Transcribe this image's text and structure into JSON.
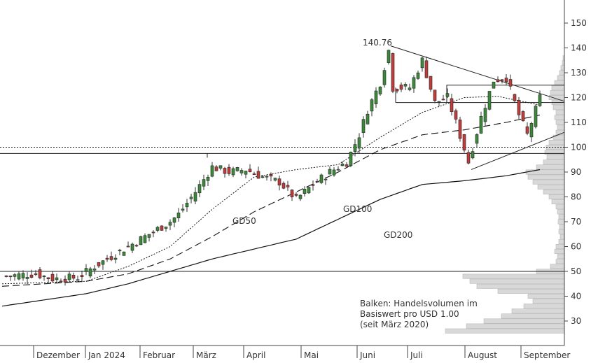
{
  "chart_data": {
    "type": "candlestick",
    "y_axis": {
      "position": "right",
      "range": [
        22,
        162
      ],
      "ticks": [
        30,
        40,
        50,
        60,
        70,
        80,
        90,
        100,
        110,
        120,
        130,
        140,
        150
      ],
      "tick_labels": [
        "30",
        "40",
        "50",
        "60",
        "70",
        "80",
        "90",
        "100",
        "110",
        "120",
        "130",
        "140",
        "150"
      ]
    },
    "x_axis": {
      "labels": [
        "Dezember",
        "Jan 2024",
        "Februar",
        "März",
        "April",
        "Mai",
        "Juni",
        "Juli",
        "August",
        "September"
      ]
    },
    "peak_label": "140.76",
    "peak_value": 140.76,
    "moving_average_labels": [
      "GD50",
      "GD100",
      "GD200"
    ],
    "reference_lines": {
      "horizontal_solid": 50,
      "horizontal_dotted": 100,
      "support_box_top": 97.5,
      "range_box": [
        118,
        125
      ]
    },
    "price_path": [
      [
        0,
        48
      ],
      [
        8,
        49
      ],
      [
        12,
        47
      ],
      [
        18,
        47.5
      ],
      [
        22,
        52
      ],
      [
        28,
        58
      ],
      [
        36,
        66
      ],
      [
        40,
        70
      ],
      [
        42,
        73
      ],
      [
        46,
        82
      ],
      [
        50,
        92
      ],
      [
        54,
        90
      ],
      [
        58,
        91
      ],
      [
        62,
        88
      ],
      [
        66,
        86
      ],
      [
        70,
        79
      ],
      [
        74,
        85
      ],
      [
        78,
        90
      ],
      [
        82,
        94
      ],
      [
        85,
        105
      ],
      [
        87,
        115
      ],
      [
        90,
        126
      ],
      [
        92,
        139
      ],
      [
        93,
        124
      ],
      [
        97,
        124
      ],
      [
        100,
        135
      ],
      [
        103,
        118
      ],
      [
        106,
        120
      ],
      [
        108,
        110
      ],
      [
        111,
        94
      ],
      [
        114,
        112
      ],
      [
        117,
        127
      ],
      [
        120,
        128
      ],
      [
        123,
        113
      ],
      [
        125,
        105
      ],
      [
        128,
        120
      ]
    ],
    "gd50": [
      [
        0,
        45
      ],
      [
        20,
        46
      ],
      [
        30,
        52
      ],
      [
        40,
        60
      ],
      [
        50,
        75
      ],
      [
        60,
        88
      ],
      [
        70,
        91
      ],
      [
        80,
        93
      ],
      [
        90,
        104
      ],
      [
        100,
        114
      ],
      [
        110,
        120
      ],
      [
        118,
        120.5
      ],
      [
        128,
        117
      ]
    ],
    "gd100": [
      [
        0,
        44
      ],
      [
        20,
        46
      ],
      [
        30,
        49
      ],
      [
        40,
        55
      ],
      [
        50,
        64
      ],
      [
        60,
        74
      ],
      [
        70,
        82
      ],
      [
        80,
        90
      ],
      [
        90,
        99
      ],
      [
        100,
        105
      ],
      [
        110,
        107
      ],
      [
        120,
        110
      ],
      [
        128,
        113
      ]
    ],
    "gd200": [
      [
        0,
        36
      ],
      [
        20,
        41
      ],
      [
        30,
        45
      ],
      [
        40,
        50
      ],
      [
        50,
        55
      ],
      [
        60,
        59
      ],
      [
        70,
        63
      ],
      [
        80,
        71
      ],
      [
        90,
        79
      ],
      [
        100,
        85
      ],
      [
        110,
        86.5
      ],
      [
        120,
        88.5
      ],
      [
        128,
        91
      ]
    ],
    "volume_profile_note": [
      "Balken: Handelsvolumen im",
      "Basiswert pro USD 1.00",
      "(seit März 2020)"
    ]
  }
}
